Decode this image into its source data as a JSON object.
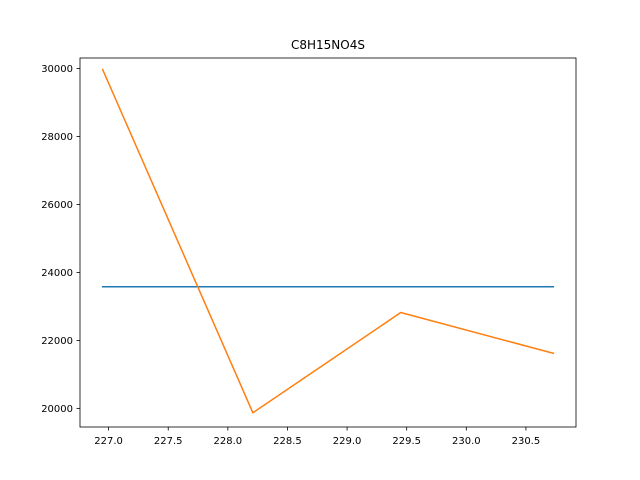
{
  "chart_data": {
    "type": "line",
    "title": "C8H15NO4S",
    "xlabel": "",
    "ylabel": "",
    "xlim": [
      226.76,
      230.92
    ],
    "ylim": [
      19452,
      30309
    ],
    "grid": false,
    "legend": "none",
    "x_ticks": [
      227.0,
      227.5,
      228.0,
      228.5,
      229.0,
      229.5,
      230.0,
      230.5
    ],
    "x_tick_labels": [
      "227.0",
      "227.5",
      "228.0",
      "228.5",
      "229.0",
      "229.5",
      "230.0",
      "230.5"
    ],
    "y_ticks": [
      20000,
      22000,
      24000,
      26000,
      28000,
      30000
    ],
    "y_tick_labels": [
      "20000",
      "22000",
      "24000",
      "26000",
      "28000",
      "30000"
    ],
    "series": [
      {
        "color": "#1f77b4",
        "x": [
          226.95,
          230.73
        ],
        "y": [
          23580,
          23580
        ]
      },
      {
        "color": "#ff7f0e",
        "x": [
          226.95,
          228.21,
          229.45,
          230.73
        ],
        "y": [
          29970,
          19870,
          22820,
          21620
        ]
      }
    ]
  }
}
